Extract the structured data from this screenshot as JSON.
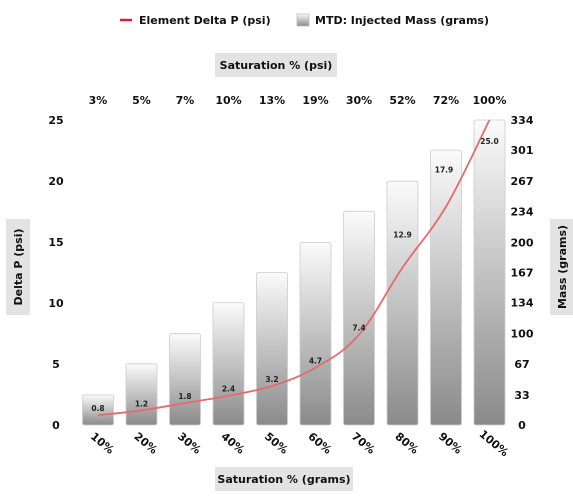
{
  "legend": {
    "line_label": "Element Delta P (psi)",
    "bar_label": "MTD: Injected Mass (grams)"
  },
  "colors": {
    "line": "#e46b6b",
    "line_legend": "#d62031",
    "bar_top": "#fbfbfb",
    "bar_bottom": "#8a8a8a",
    "bar_stroke": "#cccccc",
    "title_box": "#e3e3e3"
  },
  "chart_data": {
    "type": "bar",
    "title": "",
    "bottom_axis_title": "Saturation % (grams)",
    "top_axis_title": "Saturation % (psi)",
    "left_axis_title": "Delta P (psi)",
    "right_axis_title": "Mass (grams)",
    "categories": [
      "10%",
      "20%",
      "30%",
      "40%",
      "50%",
      "60%",
      "70%",
      "80%",
      "90%",
      "100%"
    ],
    "top_categories": [
      "3%",
      "5%",
      "7%",
      "10%",
      "13%",
      "19%",
      "30%",
      "52%",
      "72%",
      "100%"
    ],
    "left_ticks": [
      "0",
      "5",
      "10",
      "15",
      "20",
      "25"
    ],
    "right_ticks": [
      "0",
      "33",
      "67",
      "100",
      "134",
      "167",
      "200",
      "234",
      "267",
      "301",
      "334"
    ],
    "ylim_left": [
      0,
      25
    ],
    "ylim_right": [
      0,
      334
    ],
    "grid": false,
    "legend_position": "top",
    "series": [
      {
        "name": "MTD: Injected Mass (grams)",
        "type": "bar",
        "axis": "right",
        "values": [
          33,
          67,
          100,
          134,
          167,
          200,
          234,
          267,
          301,
          334
        ]
      },
      {
        "name": "Element Delta P (psi)",
        "type": "line",
        "axis": "left",
        "values": [
          0.8,
          1.2,
          1.8,
          2.4,
          3.2,
          4.7,
          7.4,
          12.9,
          17.9,
          25.0
        ],
        "labels": [
          "0.8",
          "1.2",
          "1.8",
          "2.4",
          "3.2",
          "4.7",
          "7.4",
          "12.9",
          "17.9",
          "25.0"
        ]
      }
    ]
  }
}
